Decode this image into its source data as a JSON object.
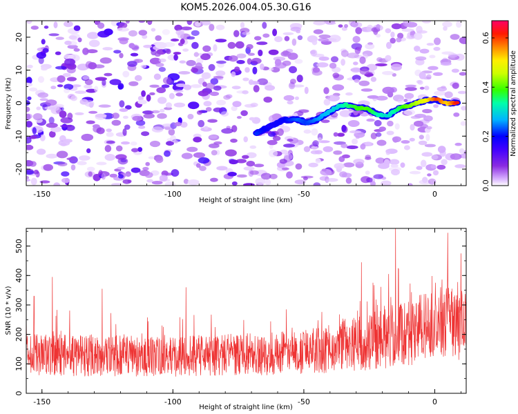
{
  "title": "KOM5.2026.004.05.30.G16",
  "chart_data": [
    {
      "type": "heatmap",
      "name": "spectrogram",
      "xlabel": "Height of straight line (km)",
      "ylabel": "Frequency (Hz)",
      "xlim": [
        -156,
        12
      ],
      "ylim": [
        -25,
        25
      ],
      "xticks": [
        -150,
        -100,
        -50,
        0
      ],
      "yticks": [
        -20,
        -10,
        0,
        10,
        20
      ],
      "colorbar": {
        "label": "Normalized spectral amplitude",
        "range": [
          0.0,
          0.67
        ],
        "ticks": [
          0.0,
          0.2,
          0.4,
          0.6
        ],
        "colormap": [
          "#ffffff",
          "#d9b3ff",
          "#8a2be2",
          "#5a00ff",
          "#0000ff",
          "#00ccff",
          "#00ff66",
          "#66ff00",
          "#ffff00",
          "#ff8800",
          "#ff0000",
          "#ff0066"
        ]
      },
      "ridge": [
        {
          "x": -68,
          "f": -9,
          "a": 0.22
        },
        {
          "x": -63,
          "f": -7,
          "a": 0.18
        },
        {
          "x": -57,
          "f": -5,
          "a": 0.2
        },
        {
          "x": -52,
          "f": -5,
          "a": 0.24
        },
        {
          "x": -49,
          "f": -6,
          "a": 0.22
        },
        {
          "x": -45,
          "f": -5,
          "a": 0.25
        },
        {
          "x": -41,
          "f": -3,
          "a": 0.28
        },
        {
          "x": -37,
          "f": -1,
          "a": 0.3
        },
        {
          "x": -34,
          "f": -0.5,
          "a": 0.34
        },
        {
          "x": -30,
          "f": -1.5,
          "a": 0.38
        },
        {
          "x": -26,
          "f": -1.5,
          "a": 0.4
        },
        {
          "x": -22,
          "f": -3.5,
          "a": 0.34
        },
        {
          "x": -18,
          "f": -4,
          "a": 0.3
        },
        {
          "x": -15,
          "f": -2,
          "a": 0.34
        },
        {
          "x": -11,
          "f": -1,
          "a": 0.4
        },
        {
          "x": -7,
          "f": 0,
          "a": 0.44
        },
        {
          "x": -3,
          "f": 1,
          "a": 0.5
        },
        {
          "x": 1,
          "f": 1,
          "a": 0.6
        },
        {
          "x": 5,
          "f": 0,
          "a": 0.52
        },
        {
          "x": 9,
          "f": 0,
          "a": 0.64
        }
      ]
    },
    {
      "type": "line",
      "name": "snr",
      "xlabel": "Height of straight line (km)",
      "ylabel": "SNR (10 * v/v)",
      "xlim": [
        -156,
        12
      ],
      "ylim": [
        0,
        560
      ],
      "xticks": [
        -150,
        -100,
        -50,
        0
      ],
      "yticks": [
        0,
        100,
        200,
        300,
        400,
        500
      ],
      "color": "#ee3333",
      "baseline_trend": [
        {
          "x": -156,
          "y": 130
        },
        {
          "x": -100,
          "y": 125
        },
        {
          "x": -60,
          "y": 135
        },
        {
          "x": -40,
          "y": 150
        },
        {
          "x": -20,
          "y": 185
        },
        {
          "x": 0,
          "y": 230
        },
        {
          "x": 12,
          "y": 250
        }
      ],
      "peaks": [
        {
          "x": -153,
          "y": 330
        },
        {
          "x": -146,
          "y": 395
        },
        {
          "x": -127,
          "y": 355
        },
        {
          "x": -95,
          "y": 360
        },
        {
          "x": -28,
          "y": 445
        },
        {
          "x": -15,
          "y": 560
        },
        {
          "x": 5,
          "y": 545
        },
        {
          "x": 10,
          "y": 475
        }
      ]
    }
  ]
}
